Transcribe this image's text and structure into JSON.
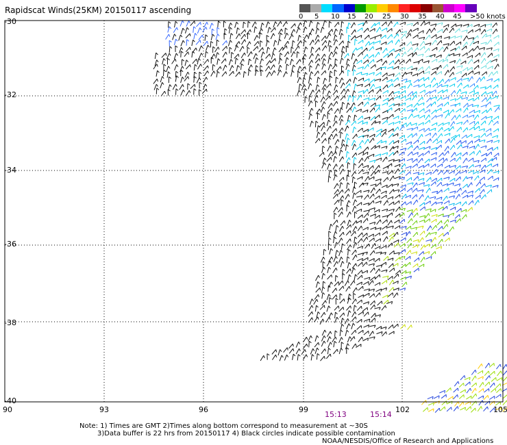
{
  "title": "Rapidscat Winds(25KM) 20150117 ascending",
  "lat_labels": [
    "-30",
    "-32",
    "-34",
    "-36",
    "-38",
    "-40"
  ],
  "lon_labels": [
    "90",
    "93",
    "96",
    "99",
    "102",
    "105"
  ],
  "time_labels": [
    "15:13",
    "15:14"
  ],
  "legend": {
    "ticks": [
      "0",
      "5",
      "10",
      "15",
      "20",
      "25",
      "30",
      "35",
      "40",
      "45",
      ">50 knots"
    ],
    "colors": [
      "#555555",
      "#aaaaaa",
      "#00ddff",
      "#0066ff",
      "#0000cc",
      "#009900",
      "#99ee00",
      "#ffcc00",
      "#ff8800",
      "#ff2222",
      "#dd0000",
      "#880000",
      "#995533",
      "#cc00cc",
      "#ff00ff",
      "#6600bb"
    ]
  },
  "notes": {
    "line1": "Note: 1) Times are GMT 2)Times along bottom correspond to measurement at ~30S",
    "line2": "3)Data buffer is 22 hrs from 20150117 4) Black circles indicate possible contamination",
    "credit": "NOAA/NESDIS/Office of Research and Applications"
  }
}
